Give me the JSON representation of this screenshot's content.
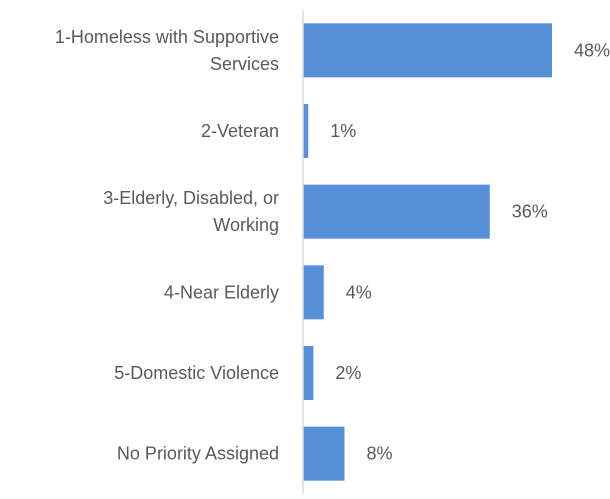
{
  "chart_data": {
    "type": "bar",
    "orientation": "horizontal",
    "categories": [
      [
        "1-Homeless with Supportive",
        "Services"
      ],
      [
        "2-Veteran"
      ],
      [
        "3-Elderly, Disabled, or",
        "Working"
      ],
      [
        "4-Near Elderly"
      ],
      [
        "5-Domestic Violence"
      ],
      [
        "No Priority Assigned"
      ]
    ],
    "values": [
      48,
      1,
      36,
      4,
      2,
      8
    ],
    "value_labels": [
      "48%",
      "1%",
      "36%",
      "4%",
      "2%",
      "8%"
    ],
    "unit": "%",
    "xlim": [
      0,
      58
    ],
    "grid": false,
    "legend": "none",
    "colors": {
      "bar": "#5590d8",
      "axis": "#d9d9d9",
      "text": "#595959"
    }
  }
}
